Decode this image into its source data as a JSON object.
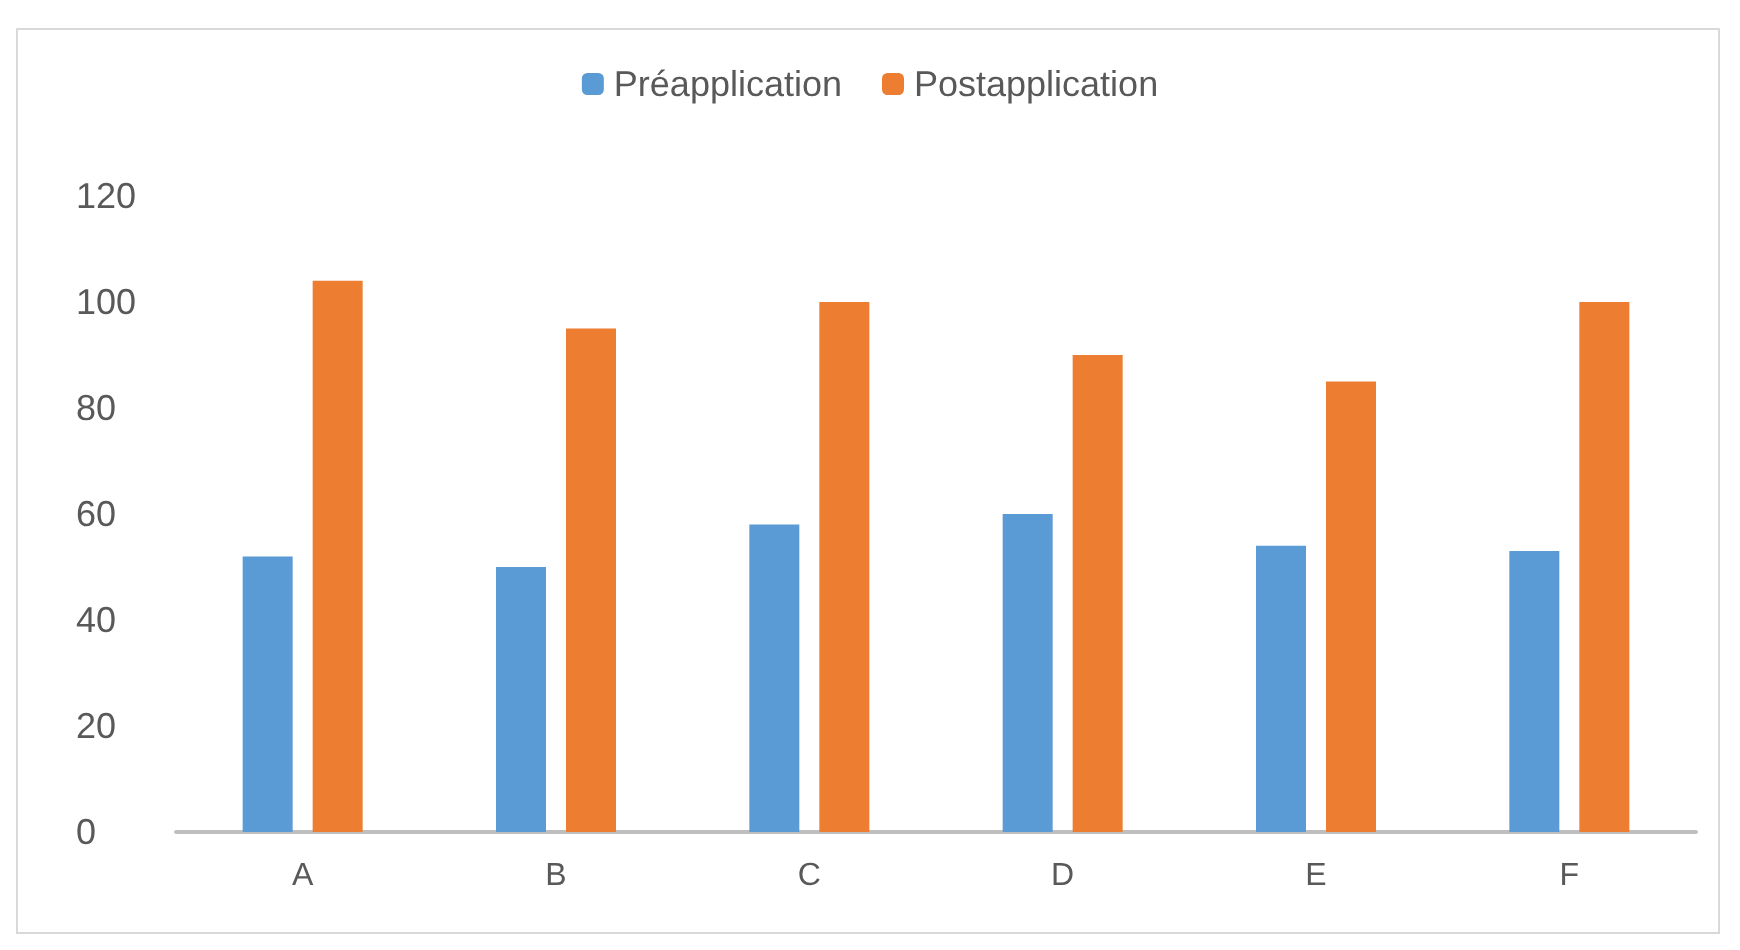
{
  "chart_data": {
    "type": "bar",
    "categories": [
      "A",
      "B",
      "C",
      "D",
      "E",
      "F"
    ],
    "series": [
      {
        "name": "Préapplication",
        "color": "#5b9bd5",
        "values": [
          52,
          50,
          58,
          60,
          54,
          53
        ]
      },
      {
        "name": "Postapplication",
        "color": "#ed7d31",
        "values": [
          104,
          95,
          100,
          90,
          85,
          100
        ]
      }
    ],
    "ylim": [
      0,
      120
    ],
    "yticks": [
      0,
      20,
      40,
      60,
      80,
      100,
      120
    ],
    "grid": false,
    "legend": "top"
  }
}
